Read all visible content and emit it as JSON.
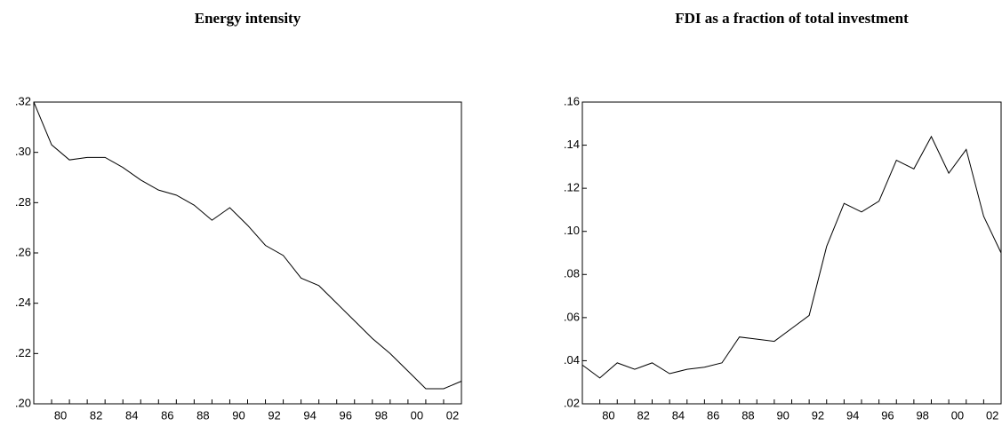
{
  "chart_data": [
    {
      "type": "line",
      "title": "Energy intensity",
      "categories": [
        null,
        "80",
        null,
        "82",
        null,
        "84",
        null,
        "86",
        null,
        "88",
        null,
        "90",
        null,
        "92",
        null,
        "94",
        null,
        "96",
        null,
        "98",
        null,
        "00",
        null,
        "02",
        null
      ],
      "values": [
        0.32,
        0.303,
        0.297,
        0.298,
        0.298,
        0.294,
        0.289,
        0.285,
        0.283,
        0.279,
        0.273,
        0.278,
        0.271,
        0.263,
        0.259,
        0.25,
        0.247,
        0.24,
        0.233,
        0.226,
        0.22,
        0.213,
        0.206,
        0.206,
        0.209
      ],
      "color": "#000000",
      "ylim": [
        0.2,
        0.32
      ],
      "yticks": [
        {
          "value": 0.2,
          "label": ".20"
        },
        {
          "value": 0.22,
          "label": ".22"
        },
        {
          "value": 0.24,
          "label": ".24"
        },
        {
          "value": 0.26,
          "label": ".26"
        },
        {
          "value": 0.28,
          "label": ".28"
        },
        {
          "value": 0.3,
          "label": ".30"
        },
        {
          "value": 0.32,
          "label": ".32"
        }
      ],
      "grid": false
    },
    {
      "type": "line",
      "title": "FDI as a fraction of total investment",
      "categories": [
        null,
        "80",
        null,
        "82",
        null,
        "84",
        null,
        "86",
        null,
        "88",
        null,
        "90",
        null,
        "92",
        null,
        "94",
        null,
        "96",
        null,
        "98",
        null,
        "00",
        null,
        "02",
        null
      ],
      "values": [
        0.038,
        0.032,
        0.039,
        0.036,
        0.039,
        0.034,
        0.036,
        0.037,
        0.039,
        0.051,
        0.05,
        0.049,
        0.055,
        0.061,
        0.093,
        0.113,
        0.109,
        0.114,
        0.133,
        0.129,
        0.144,
        0.127,
        0.138,
        0.107,
        0.09
      ],
      "color": "#000000",
      "ylim": [
        0.02,
        0.16
      ],
      "yticks": [
        {
          "value": 0.02,
          "label": ".02"
        },
        {
          "value": 0.04,
          "label": ".04"
        },
        {
          "value": 0.06,
          "label": ".06"
        },
        {
          "value": 0.08,
          "label": ".08"
        },
        {
          "value": 0.1,
          "label": ".10"
        },
        {
          "value": 0.12,
          "label": ".12"
        },
        {
          "value": 0.14,
          "label": ".14"
        },
        {
          "value": 0.16,
          "label": ".16"
        }
      ],
      "grid": false
    }
  ]
}
